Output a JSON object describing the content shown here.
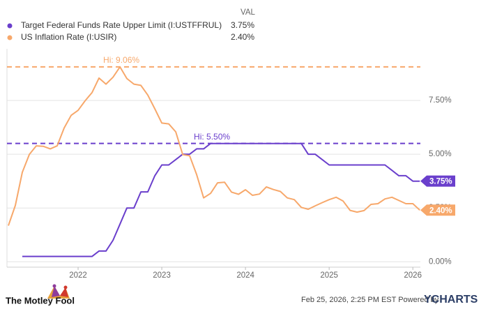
{
  "chart_data": {
    "type": "line",
    "legend_header": "VAL",
    "xlim": [
      2021.15,
      2026.09
    ],
    "xticks": [
      2022,
      2023,
      2024,
      2025,
      2026
    ],
    "ylim": [
      -0.25,
      9.9
    ],
    "yticks": [
      {
        "value": 0,
        "label": "0.00%"
      },
      {
        "value": 2.5,
        "label": "2.50%"
      },
      {
        "value": 5,
        "label": "5.00%"
      },
      {
        "value": 7.5,
        "label": "7.50%"
      }
    ],
    "grid": true,
    "series": [
      {
        "name": "Target Federal Funds Rate Upper Limit (I:USTFFRUL)",
        "color": "#6a3fcc",
        "last_value": {
          "value": 3.75,
          "label": "3.75%"
        },
        "high": {
          "value": 5.5,
          "label": "Hi: 5.50%"
        },
        "x": [
          2021.333,
          2021.417,
          2021.5,
          2021.583,
          2021.667,
          2021.75,
          2021.833,
          2021.917,
          2022,
          2022.083,
          2022.167,
          2022.25,
          2022.333,
          2022.417,
          2022.5,
          2022.583,
          2022.667,
          2022.75,
          2022.833,
          2022.917,
          2023,
          2023.083,
          2023.167,
          2023.25,
          2023.333,
          2023.417,
          2023.5,
          2023.583,
          2023.667,
          2023.75,
          2023.833,
          2023.917,
          2024,
          2024.083,
          2024.167,
          2024.25,
          2024.333,
          2024.417,
          2024.5,
          2024.583,
          2024.667,
          2024.75,
          2024.833,
          2024.917,
          2025,
          2025.083,
          2025.167,
          2025.25,
          2025.333,
          2025.417,
          2025.5,
          2025.583,
          2025.667,
          2025.75,
          2025.833,
          2025.917,
          2026,
          2026.083
        ],
        "values": [
          0.25,
          0.25,
          0.25,
          0.25,
          0.25,
          0.25,
          0.25,
          0.25,
          0.25,
          0.25,
          0.25,
          0.5,
          0.5,
          1.0,
          1.75,
          2.5,
          2.5,
          3.25,
          3.25,
          4.0,
          4.5,
          4.5,
          4.75,
          5.0,
          5.0,
          5.25,
          5.25,
          5.5,
          5.5,
          5.5,
          5.5,
          5.5,
          5.5,
          5.5,
          5.5,
          5.5,
          5.5,
          5.5,
          5.5,
          5.5,
          5.5,
          5.0,
          5.0,
          4.75,
          4.5,
          4.5,
          4.5,
          4.5,
          4.5,
          4.5,
          4.5,
          4.5,
          4.5,
          4.25,
          4.0,
          4.0,
          3.75,
          3.75
        ]
      },
      {
        "name": "US Inflation Rate (I:USIR)",
        "color": "#f7a86b",
        "last_value": {
          "value": 2.4,
          "label": "2.40%"
        },
        "high": {
          "value": 9.06,
          "label": "Hi: 9.06%"
        },
        "x": [
          2021.167,
          2021.25,
          2021.333,
          2021.417,
          2021.5,
          2021.583,
          2021.667,
          2021.75,
          2021.833,
          2021.917,
          2022,
          2022.083,
          2022.167,
          2022.25,
          2022.333,
          2022.417,
          2022.5,
          2022.583,
          2022.667,
          2022.75,
          2022.833,
          2022.917,
          2023,
          2023.083,
          2023.167,
          2023.25,
          2023.333,
          2023.417,
          2023.5,
          2023.583,
          2023.667,
          2023.75,
          2023.833,
          2023.917,
          2024,
          2024.083,
          2024.167,
          2024.25,
          2024.333,
          2024.417,
          2024.5,
          2024.583,
          2024.667,
          2024.75,
          2024.833,
          2024.917,
          2025,
          2025.083,
          2025.167,
          2025.25,
          2025.333,
          2025.417,
          2025.5,
          2025.583,
          2025.667,
          2025.75,
          2025.917,
          2026,
          2026.083
        ],
        "values": [
          1.68,
          2.62,
          4.16,
          4.99,
          5.39,
          5.37,
          5.25,
          5.39,
          6.22,
          6.81,
          7.04,
          7.48,
          7.87,
          8.54,
          8.26,
          8.58,
          9.06,
          8.52,
          8.26,
          8.2,
          7.75,
          7.11,
          6.45,
          6.41,
          6.04,
          4.98,
          4.93,
          4.05,
          2.97,
          3.18,
          3.67,
          3.7,
          3.24,
          3.14,
          3.35,
          3.09,
          3.15,
          3.48,
          3.36,
          3.27,
          2.97,
          2.89,
          2.53,
          2.44,
          2.6,
          2.75,
          2.89,
          3.0,
          2.82,
          2.39,
          2.31,
          2.38,
          2.67,
          2.7,
          2.92,
          3.0,
          2.7,
          2.7,
          2.4
        ]
      }
    ],
    "publisher": "The Motley Fool",
    "source": "Feb 25, 2026, 2:25 PM EST  Powered by",
    "brand": "YCHARTS"
  }
}
